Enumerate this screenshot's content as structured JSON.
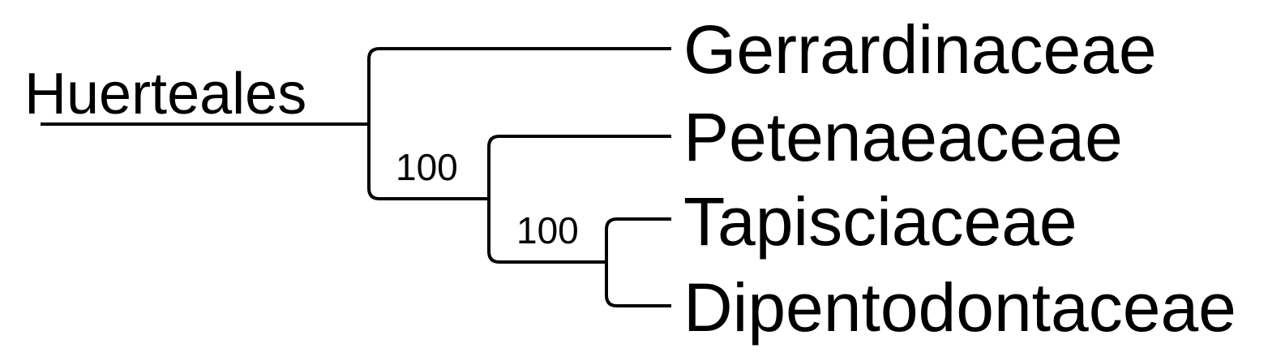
{
  "tree": {
    "order_label": "Huerteales",
    "taxa": [
      {
        "name": "Gerrardinaceae"
      },
      {
        "name": "Petenaeaceae"
      },
      {
        "name": "Tapisciaceae"
      },
      {
        "name": "Dipentodontaceae"
      }
    ],
    "support_values": [
      {
        "clade": "Petenaeaceae+Tapisciaceae+Dipentodontaceae",
        "value": "100"
      },
      {
        "clade": "Tapisciaceae+Dipentodontaceae",
        "value": "100"
      }
    ],
    "colors": {
      "line": "#000000",
      "text": "#000000",
      "background": "#ffffff"
    }
  }
}
